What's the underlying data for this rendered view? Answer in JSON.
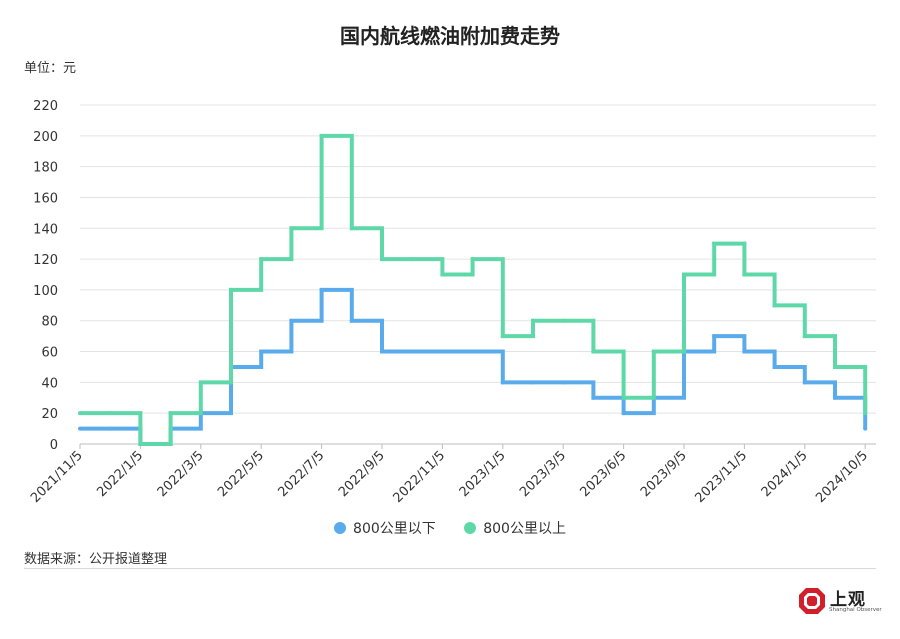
{
  "chart_data": {
    "type": "line",
    "step": true,
    "title": "国内航线燃油附加费走势",
    "unit_label": "单位：元",
    "source": "数据来源：公开报道整理",
    "ylim": [
      0,
      220
    ],
    "y_ticks": [
      "0",
      "20",
      "40",
      "60",
      "80",
      "100",
      "120",
      "140",
      "160",
      "180",
      "200",
      "220"
    ],
    "x_tick_labels": [
      "2021/11/5",
      "2022/1/5",
      "2022/3/5",
      "2022/5/5",
      "2022/7/5",
      "2022/9/5",
      "2022/11/5",
      "2023/1/5",
      "2023/3/5",
      "2023/6/5",
      "2023/9/5",
      "2023/11/5",
      "2024/1/5",
      "2024/10/5"
    ],
    "grid": true,
    "legend_position": "bottom",
    "series": [
      {
        "name": "800公里以下",
        "color": "#5aabec",
        "values": [
          10,
          10,
          0,
          10,
          20,
          50,
          60,
          80,
          100,
          80,
          60,
          60,
          60,
          60,
          40,
          40,
          40,
          30,
          20,
          30,
          60,
          70,
          60,
          50,
          40,
          30,
          10
        ]
      },
      {
        "name": "800公里以上",
        "color": "#5ed8a8",
        "values": [
          20,
          20,
          0,
          20,
          40,
          100,
          120,
          140,
          200,
          140,
          120,
          120,
          110,
          120,
          70,
          80,
          80,
          60,
          30,
          60,
          110,
          130,
          110,
          90,
          70,
          50,
          20
        ]
      }
    ]
  },
  "branding": {
    "logo_text": "上观",
    "logo_subtext": "Shanghai Observer",
    "logo_color": "#d0202b"
  }
}
